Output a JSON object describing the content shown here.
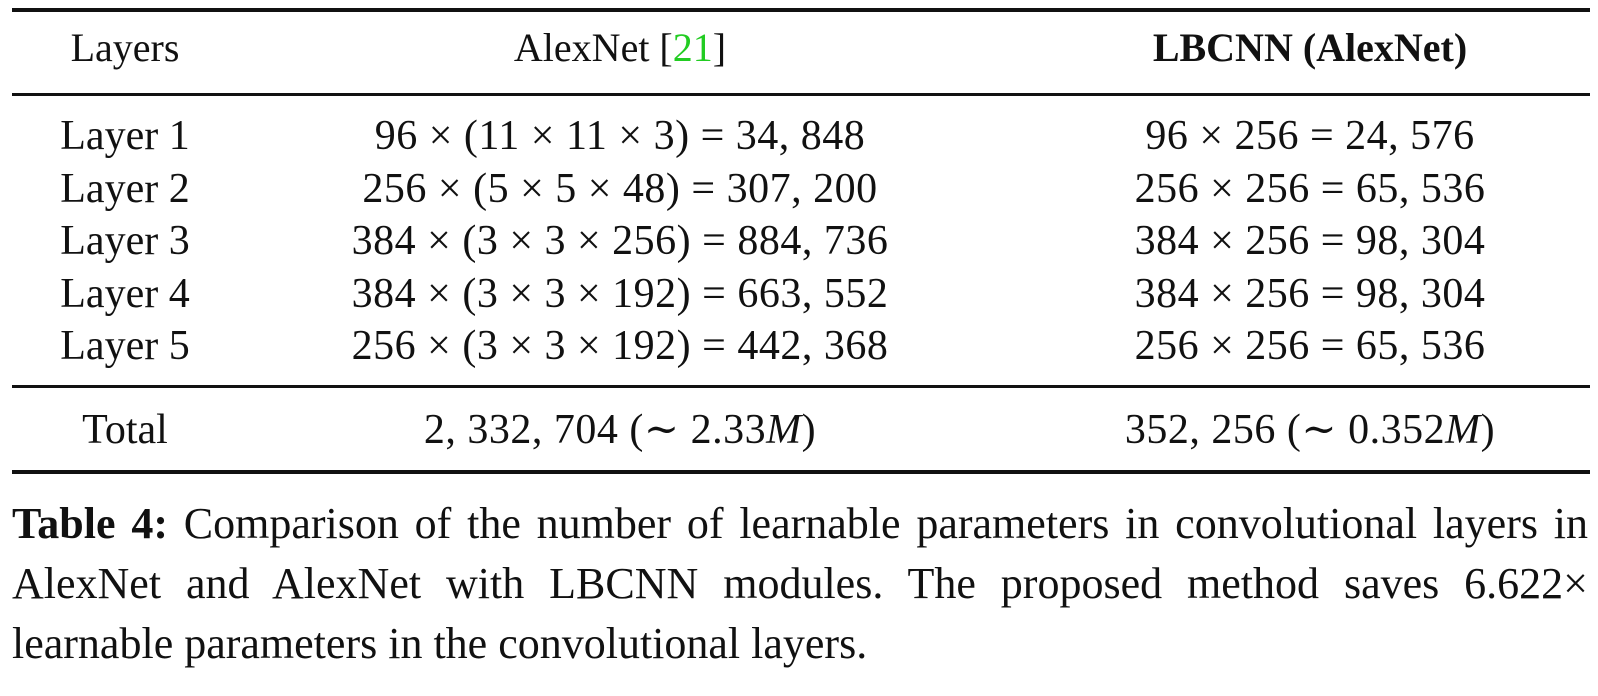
{
  "table": {
    "headers": {
      "layers": "Layers",
      "alexnet_name": "AlexNet [",
      "alexnet_cite": "21",
      "alexnet_close": "]",
      "lbcnn": "LBCNN (AlexNet)"
    },
    "rows": [
      {
        "layer": "Layer 1",
        "alexnet": "96 × (11 × 11 × 3) = 34, 848",
        "lbcnn": "96 × 256 = 24, 576"
      },
      {
        "layer": "Layer 2",
        "alexnet": "256 × (5 × 5 × 48) = 307, 200",
        "lbcnn": "256 × 256 = 65, 536"
      },
      {
        "layer": "Layer 3",
        "alexnet": "384 × (3 × 3 × 256) = 884, 736",
        "lbcnn": "384 × 256 = 98, 304"
      },
      {
        "layer": "Layer 4",
        "alexnet": "384 × (3 × 3 × 192) = 663, 552",
        "lbcnn": "384 × 256 = 98, 304"
      },
      {
        "layer": "Layer 5",
        "alexnet": "256 × (3 × 3 × 192) = 442, 368",
        "lbcnn": "256 × 256 = 65, 536"
      }
    ],
    "total": {
      "label": "Total",
      "alexnet_value": "2, 332, 704 (∼ 2.33",
      "alexnet_unit": "M",
      "alexnet_close": ")",
      "lbcnn_value": "352, 256 (∼ 0.352",
      "lbcnn_unit": "M",
      "lbcnn_close": ")"
    }
  },
  "caption": {
    "label": "Table 4:",
    "text": "Comparison of the number of learnable parameters in convolutional layers in AlexNet and AlexNet with LBCNN modules. The proposed method saves 6.622× learnable parameters in the convolutional layers."
  }
}
